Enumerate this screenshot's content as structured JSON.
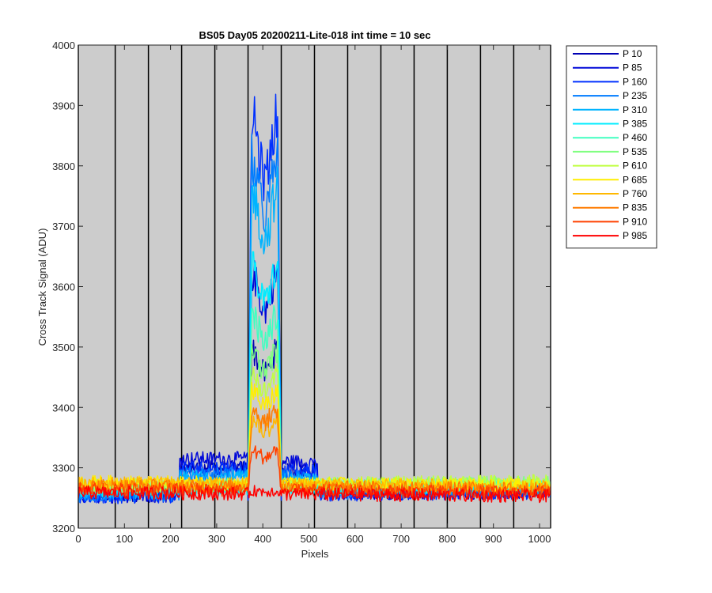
{
  "chart_data": {
    "type": "line",
    "title": "BS05 Day05 20200211-Lite-018 int time = 10 sec",
    "xlabel": "Pixels",
    "ylabel": "Cross Track Signal (ADU)",
    "xlim": [
      0,
      1024
    ],
    "ylim": [
      3200,
      4000
    ],
    "xticks": [
      0,
      100,
      200,
      300,
      400,
      500,
      600,
      700,
      800,
      900,
      1000
    ],
    "yticks": [
      3200,
      3300,
      3400,
      3500,
      3600,
      3700,
      3800,
      3900,
      4000
    ],
    "vertical_lines_x": [
      0,
      80,
      152,
      224,
      296,
      368,
      440,
      512,
      584,
      656,
      728,
      800,
      872,
      944,
      1024
    ],
    "background": "#cccccc",
    "grid": false,
    "legend_position": "outside-top-right",
    "peak_region": [
      368,
      440
    ],
    "series": [
      {
        "name": "P 10",
        "color": "#0000b4",
        "baseline": 3258,
        "peak": 3500,
        "shoulder": 3300
      },
      {
        "name": "P 85",
        "color": "#0008d8",
        "baseline": 3256,
        "peak": 3630,
        "shoulder": 3315
      },
      {
        "name": "P 160",
        "color": "#0030ff",
        "baseline": 3255,
        "peak": 3895,
        "shoulder": 3300
      },
      {
        "name": "P 235",
        "color": "#007cff",
        "baseline": 3258,
        "peak": 3820,
        "shoulder": 3290
      },
      {
        "name": "P 310",
        "color": "#00b4ff",
        "baseline": 3262,
        "peak": 3770,
        "shoulder": 3285
      },
      {
        "name": "P 385",
        "color": "#00ecff",
        "baseline": 3266,
        "peak": 3640,
        "shoulder": 3282
      },
      {
        "name": "P 460",
        "color": "#40ffc0",
        "baseline": 3270,
        "peak": 3560,
        "shoulder": 3280
      },
      {
        "name": "P 535",
        "color": "#80ff80",
        "baseline": 3272,
        "peak": 3500,
        "shoulder": 3280
      },
      {
        "name": "P 610",
        "color": "#c0ff40",
        "baseline": 3274,
        "peak": 3460,
        "shoulder": 3280
      },
      {
        "name": "P 685",
        "color": "#ffee00",
        "baseline": 3274,
        "peak": 3430,
        "shoulder": 3280
      },
      {
        "name": "P 760",
        "color": "#ffb800",
        "baseline": 3272,
        "peak": 3380,
        "shoulder": 3278
      },
      {
        "name": "P 835",
        "color": "#ff7c00",
        "baseline": 3268,
        "peak": 3400,
        "shoulder": 3275
      },
      {
        "name": "P 910",
        "color": "#ff4000",
        "baseline": 3262,
        "peak": 3330,
        "shoulder": 3268
      },
      {
        "name": "P 985",
        "color": "#ff0000",
        "baseline": 3256,
        "peak": 3262,
        "shoulder": 3258
      }
    ]
  }
}
